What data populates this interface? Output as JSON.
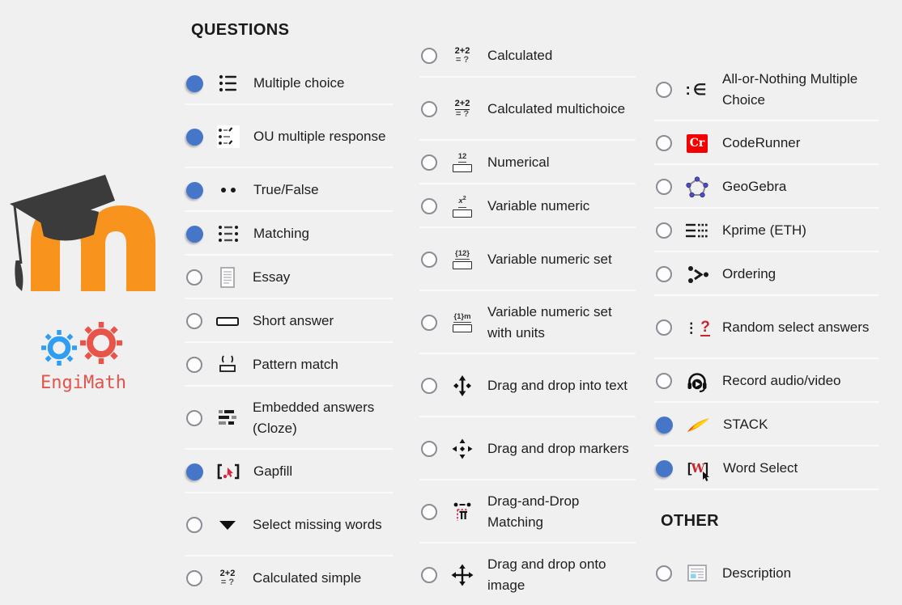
{
  "page": {
    "background": "#f0f0f1",
    "separator_color": "#fafafa"
  },
  "colors": {
    "radio_selected": "#4576c7",
    "radio_border": "#8c8c96",
    "text": "#1e1e1e",
    "moodle_orange": "#f8931e",
    "cap_black": "#3b3b3b",
    "engimath_red": "#e0544a",
    "engimath_blue": "#2e9df2",
    "coderunner_red": "#f50000",
    "accent_red": "#c9252b"
  },
  "branding": {
    "moodle_logo": "moodle-m-graduation-cap-logo",
    "engimath_label": "EngiMath"
  },
  "columns": [
    {
      "header": "QUESTIONS",
      "items": [
        {
          "label": "Multiple choice",
          "icon": "multiple-choice-list-icon",
          "selected": true,
          "lines": 1
        },
        {
          "label": "OU multiple response",
          "icon": "checklist-icon",
          "selected": true,
          "lines": 2
        },
        {
          "label": "True/False",
          "icon": "two-dots-icon",
          "selected": true,
          "lines": 1
        },
        {
          "label": "Matching",
          "icon": "matching-pairs-icon",
          "selected": true,
          "lines": 1
        },
        {
          "label": "Essay",
          "icon": "essay-document-icon",
          "selected": false,
          "lines": 1
        },
        {
          "label": "Short answer",
          "icon": "answer-box-icon",
          "selected": false,
          "lines": 1
        },
        {
          "label": "Pattern match",
          "icon": "pattern-match-icon",
          "selected": false,
          "lines": 1
        },
        {
          "label": "Embedded answers (Cloze)",
          "icon": "cloze-blocks-icon",
          "selected": false,
          "lines": 2
        },
        {
          "label": "Gapfill",
          "icon": "gapfill-brackets-icon",
          "selected": true,
          "lines": 1
        },
        {
          "label": "Select missing words",
          "icon": "dropdown-triangle-icon",
          "selected": false,
          "lines": 2
        },
        {
          "label": "Calculated simple",
          "icon": "calc-2plus2-icon",
          "selected": false,
          "lines": 1
        }
      ]
    },
    {
      "header": null,
      "items": [
        {
          "label": "Calculated",
          "icon": "calc-2plus2-icon",
          "selected": false,
          "lines": 1
        },
        {
          "label": "Calculated multichoice",
          "icon": "calc-2plus2-underline-icon",
          "selected": false,
          "lines": 2
        },
        {
          "label": "Numerical",
          "icon": "numeric-box-icon",
          "selected": false,
          "lines": 1
        },
        {
          "label": "Variable numeric",
          "icon": "xsquared-box-icon",
          "selected": false,
          "lines": 1
        },
        {
          "label": "Variable numeric set",
          "icon": "set12-box-icon",
          "selected": false,
          "lines": 2
        },
        {
          "label": "Variable numeric set with units",
          "icon": "set1m-box-icon",
          "selected": false,
          "lines": 2
        },
        {
          "label": "Drag and drop into text",
          "icon": "drag-vertical-icon",
          "selected": false,
          "lines": 2
        },
        {
          "label": "Drag and drop markers",
          "icon": "drag-markers-icon",
          "selected": false,
          "lines": 2
        },
        {
          "label": "Drag-and-Drop Matching",
          "icon": "drag-matching-icon",
          "selected": false,
          "lines": 2
        },
        {
          "label": "Drag and drop onto image",
          "icon": "move-cross-icon",
          "selected": false,
          "lines": 2
        }
      ]
    },
    {
      "header": null,
      "items": [
        {
          "label": "All-or-Nothing Multiple Choice",
          "icon": "element-of-icon",
          "selected": false,
          "lines": 2
        },
        {
          "label": "CodeRunner",
          "icon": "coderunner-cr-icon",
          "selected": false,
          "lines": 1
        },
        {
          "label": "GeoGebra",
          "icon": "geogebra-pentagon-icon",
          "selected": false,
          "lines": 1
        },
        {
          "label": "Kprime (ETH)",
          "icon": "kprime-grid-icon",
          "selected": false,
          "lines": 1
        },
        {
          "label": "Ordering",
          "icon": "ordering-dots-icon",
          "selected": false,
          "lines": 1
        },
        {
          "label": "Random select answers",
          "icon": "random-question-icon",
          "selected": false,
          "lines": 2
        },
        {
          "label": "Record audio/video",
          "icon": "headset-play-icon",
          "selected": false,
          "lines": 1
        },
        {
          "label": "STACK",
          "icon": "stack-flame-icon",
          "selected": true,
          "lines": 1
        },
        {
          "label": "Word Select",
          "icon": "word-select-icon",
          "selected": true,
          "lines": 1
        }
      ],
      "subheader": "OTHER",
      "other_items": [
        {
          "label": "Description",
          "icon": "description-page-icon",
          "selected": false,
          "lines": 1
        }
      ]
    }
  ]
}
